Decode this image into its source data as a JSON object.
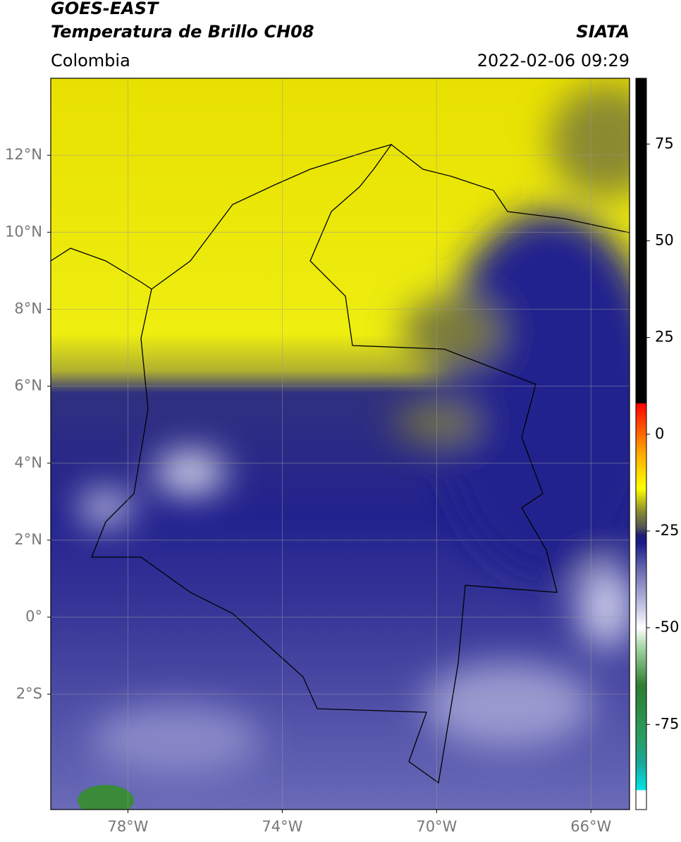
{
  "chart_data": {
    "type": "map",
    "title": "GOES-EAST",
    "subtitle": "Temperatura de Brillo CH08",
    "source": "SIATA",
    "region": "Colombia",
    "datetime": "2022-02-06 09:29",
    "xlim": [
      -80,
      -65
    ],
    "ylim": [
      -5,
      14
    ],
    "xticks": [
      {
        "value": -78,
        "label": "78°W"
      },
      {
        "value": -74,
        "label": "74°W"
      },
      {
        "value": -70,
        "label": "70°W"
      },
      {
        "value": -66,
        "label": "66°W"
      }
    ],
    "yticks": [
      {
        "value": 12,
        "label": "12°N"
      },
      {
        "value": 10,
        "label": "10°N"
      },
      {
        "value": 8,
        "label": "8°N"
      },
      {
        "value": 6,
        "label": "6°N"
      },
      {
        "value": 4,
        "label": "4°N"
      },
      {
        "value": 2,
        "label": "2°N"
      },
      {
        "value": 0,
        "label": "0°"
      },
      {
        "value": -2,
        "label": "2°S"
      }
    ],
    "grid": true,
    "colorbar": {
      "lim": [
        -97,
        92
      ],
      "ticks": [
        75,
        50,
        25,
        0,
        -25,
        -50,
        -75
      ],
      "stops": [
        [
          -97,
          "#ffffff"
        ],
        [
          -92,
          "#ffffff"
        ],
        [
          -92,
          "#00e5e5"
        ],
        [
          -85,
          "#1aa89a"
        ],
        [
          -78,
          "#2a9d60"
        ],
        [
          -65,
          "#2e7d32"
        ],
        [
          -55,
          "#a5d6a7"
        ],
        [
          -50,
          "#ffffff"
        ],
        [
          -45,
          "#c8c8e6"
        ],
        [
          -35,
          "#6a6ab0"
        ],
        [
          -28,
          "#1a1a8a"
        ],
        [
          -26,
          "#202070"
        ],
        [
          -24,
          "#555555"
        ],
        [
          -20,
          "#8a8a30"
        ],
        [
          -14,
          "#ffff00"
        ],
        [
          -5,
          "#ffaa00"
        ],
        [
          8,
          "#ff0000"
        ],
        [
          8,
          "#000000"
        ],
        [
          92,
          "#000000"
        ]
      ]
    }
  }
}
